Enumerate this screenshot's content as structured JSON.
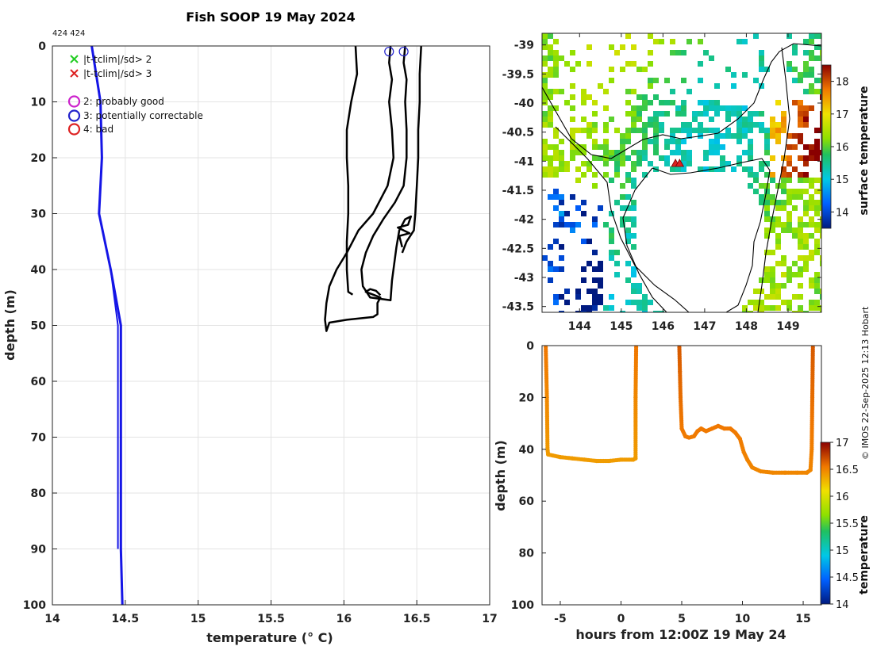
{
  "title": "Fish SOOP 19 May 2024",
  "small_tag": "424 424",
  "credit": "© IMOS 22-Sep-2025 12:13 Hobart",
  "colors": {
    "climatology": "#1515e6",
    "profile": "#000000",
    "legend_gt2": "#22cc22",
    "legend_gt3": "#dd2222",
    "flag2": "#cc22cc",
    "flag3": "#2222cc",
    "flag4": "#dd2222",
    "track_marker": "#dd2222"
  },
  "legend": [
    {
      "marker": "x",
      "color_key": "legend_gt2",
      "label": "|t-tclim|/sd> 2"
    },
    {
      "marker": "x",
      "color_key": "legend_gt3",
      "label": "|t-tclim|/sd> 3"
    },
    {
      "marker": "o",
      "color_key": "flag2",
      "label": "2: probably good"
    },
    {
      "marker": "o",
      "color_key": "flag3",
      "label": "3: potentially correctable"
    },
    {
      "marker": "o",
      "color_key": "flag4",
      "label": "4: bad"
    }
  ],
  "chart_data": [
    {
      "id": "profile",
      "type": "line",
      "title": "Fish SOOP 19 May 2024",
      "xlabel": "temperature (° C)",
      "ylabel": "depth (m)",
      "xlim": [
        14,
        17
      ],
      "ylim": [
        0,
        100
      ],
      "y_reversed": true,
      "grid": true,
      "xticks": [
        14,
        14.5,
        15,
        15.5,
        16,
        16.5,
        17
      ],
      "yticks": [
        0,
        10,
        20,
        30,
        40,
        50,
        60,
        70,
        80,
        90,
        100
      ],
      "series": [
        {
          "name": "climatology",
          "color_key": "climatology",
          "width": 3,
          "points": [
            [
              14.27,
              0
            ],
            [
              14.33,
              10
            ],
            [
              14.34,
              20
            ],
            [
              14.32,
              30
            ],
            [
              14.4,
              40
            ],
            [
              14.47,
              50
            ],
            [
              14.47,
              60
            ],
            [
              14.47,
              70
            ],
            [
              14.47,
              80
            ],
            [
              14.47,
              90
            ],
            [
              14.48,
              100
            ]
          ]
        },
        {
          "name": "climatology-sd",
          "color_key": "climatology",
          "width": 2,
          "points": [
            [
              14.27,
              0
            ],
            [
              14.33,
              10
            ],
            [
              14.34,
              20
            ],
            [
              14.32,
              30
            ],
            [
              14.4,
              40
            ],
            [
              14.45,
              50
            ],
            [
              14.45,
              60
            ],
            [
              14.45,
              70
            ],
            [
              14.45,
              80
            ],
            [
              14.45,
              90
            ]
          ]
        },
        {
          "name": "profile-1",
          "color_key": "profile",
          "width": 2.5,
          "points": [
            [
              16.08,
              0
            ],
            [
              16.09,
              5
            ],
            [
              16.05,
              10
            ],
            [
              16.02,
              15
            ],
            [
              16.02,
              20
            ],
            [
              16.03,
              25
            ],
            [
              16.03,
              30
            ],
            [
              16.02,
              35
            ],
            [
              16.02,
              40
            ],
            [
              16.03,
              44
            ],
            [
              16.06,
              44.5
            ]
          ]
        },
        {
          "name": "profile-2",
          "color_key": "profile",
          "width": 2.5,
          "points": [
            [
              16.32,
              0
            ],
            [
              16.31,
              3
            ],
            [
              16.33,
              6
            ],
            [
              16.31,
              10
            ],
            [
              16.33,
              15
            ],
            [
              16.34,
              20
            ],
            [
              16.3,
              25
            ],
            [
              16.2,
              30
            ],
            [
              16.1,
              33
            ],
            [
              16.02,
              37
            ],
            [
              15.95,
              40
            ],
            [
              15.9,
              43
            ],
            [
              15.88,
              46
            ],
            [
              15.87,
              49
            ],
            [
              15.88,
              51
            ],
            [
              15.9,
              49.5
            ],
            [
              16.02,
              49
            ],
            [
              16.2,
              48.5
            ],
            [
              16.23,
              48
            ],
            [
              16.23,
              46
            ],
            [
              16.25,
              45
            ],
            [
              16.2,
              44.5
            ],
            [
              16.15,
              44
            ],
            [
              16.18,
              43.5
            ],
            [
              16.22,
              43.8
            ],
            [
              16.25,
              44.6
            ]
          ]
        },
        {
          "name": "profile-3",
          "color_key": "profile",
          "width": 2.5,
          "points": [
            [
              16.42,
              0
            ],
            [
              16.41,
              3
            ],
            [
              16.43,
              6
            ],
            [
              16.42,
              10
            ],
            [
              16.43,
              15
            ],
            [
              16.43,
              20
            ],
            [
              16.41,
              25
            ],
            [
              16.35,
              28
            ],
            [
              16.27,
              31
            ],
            [
              16.2,
              34
            ],
            [
              16.15,
              37
            ],
            [
              16.12,
              40
            ],
            [
              16.13,
              43
            ],
            [
              16.18,
              45
            ],
            [
              16.32,
              45.5
            ],
            [
              16.33,
              42
            ],
            [
              16.36,
              36
            ],
            [
              16.38,
              33
            ],
            [
              16.42,
              31
            ],
            [
              16.46,
              30.5
            ],
            [
              16.44,
              32
            ],
            [
              16.37,
              32.5
            ],
            [
              16.45,
              33.5
            ],
            [
              16.38,
              34
            ],
            [
              16.4,
              36
            ]
          ]
        },
        {
          "name": "profile-4",
          "color_key": "profile",
          "width": 2.5,
          "points": [
            [
              16.53,
              0
            ],
            [
              16.52,
              5
            ],
            [
              16.52,
              10
            ],
            [
              16.51,
              15
            ],
            [
              16.51,
              20
            ],
            [
              16.5,
              25
            ],
            [
              16.49,
              30
            ],
            [
              16.48,
              33
            ],
            [
              16.43,
              35
            ],
            [
              16.4,
              37
            ]
          ]
        }
      ],
      "flag_circles": [
        {
          "x": 16.31,
          "y": 1,
          "color_key": "flag3"
        },
        {
          "x": 16.41,
          "y": 1,
          "color_key": "flag3"
        }
      ]
    },
    {
      "id": "map",
      "type": "heatmap",
      "xlim": [
        143.1,
        149.8
      ],
      "ylim": [
        -43.6,
        -38.8
      ],
      "xticks": [
        144,
        145,
        146,
        147,
        148,
        149
      ],
      "yticks": [
        -39,
        -39.5,
        -40,
        -40.5,
        -41,
        -41.5,
        -42,
        -42.5,
        -43,
        -43.5
      ],
      "ytick_labels": [
        "-39",
        "-39.5",
        "-40",
        "-40.5",
        "-41",
        "-41.5",
        "-42",
        "-42.5",
        "-43",
        "-43.5"
      ],
      "colorbar": {
        "label": "surface temperature",
        "vmin": 13.5,
        "vmax": 18.5,
        "ticks": [
          14,
          15,
          16,
          17,
          18
        ]
      },
      "track_markers": [
        [
          146.3,
          -41.05
        ],
        [
          146.4,
          -41.05
        ]
      ]
    },
    {
      "id": "timeseries",
      "type": "scatter",
      "xlabel": "hours from 12:00Z 19 May 24",
      "ylabel": "depth (m)",
      "xlim": [
        -6.5,
        16.5
      ],
      "ylim": [
        0,
        100
      ],
      "y_reversed": true,
      "xticks": [
        -5,
        0,
        5,
        10,
        15
      ],
      "yticks": [
        0,
        20,
        40,
        60,
        80,
        100
      ],
      "colorbar": {
        "label": "temperature",
        "vmin": 14,
        "vmax": 17,
        "ticks": [
          14,
          14.5,
          15,
          15.5,
          16,
          16.5,
          17
        ]
      },
      "casts": [
        {
          "temp": 16.3,
          "points": [
            [
              -6.2,
              0
            ],
            [
              -6.1,
              20
            ],
            [
              -6.05,
              40
            ],
            [
              -6.0,
              42
            ],
            [
              -5,
              43
            ],
            [
              -4,
              43.5
            ],
            [
              -3,
              44
            ],
            [
              -2,
              44.5
            ],
            [
              -1,
              44.5
            ],
            [
              0,
              44
            ],
            [
              1,
              44
            ],
            [
              1.2,
              43.5
            ],
            [
              1.2,
              20
            ],
            [
              1.25,
              0
            ]
          ]
        },
        {
          "temp": 16.45,
          "points": [
            [
              4.8,
              0
            ],
            [
              4.85,
              10
            ],
            [
              4.9,
              20
            ],
            [
              5.0,
              32
            ],
            [
              5.3,
              35
            ],
            [
              5.6,
              35.5
            ],
            [
              6.0,
              35
            ],
            [
              6.3,
              33
            ],
            [
              6.6,
              32
            ],
            [
              7.0,
              33
            ],
            [
              7.5,
              32
            ],
            [
              8.0,
              31
            ],
            [
              8.5,
              32
            ],
            [
              9.0,
              32
            ],
            [
              9.4,
              33.5
            ],
            [
              9.8,
              36
            ],
            [
              10.1,
              41
            ],
            [
              10.4,
              44
            ],
            [
              10.8,
              47
            ],
            [
              11.5,
              48.5
            ],
            [
              12.5,
              49
            ],
            [
              13.5,
              49
            ],
            [
              14.5,
              49
            ],
            [
              15.3,
              49
            ],
            [
              15.6,
              48
            ],
            [
              15.7,
              40
            ],
            [
              15.75,
              20
            ],
            [
              15.8,
              0
            ]
          ]
        }
      ]
    }
  ]
}
